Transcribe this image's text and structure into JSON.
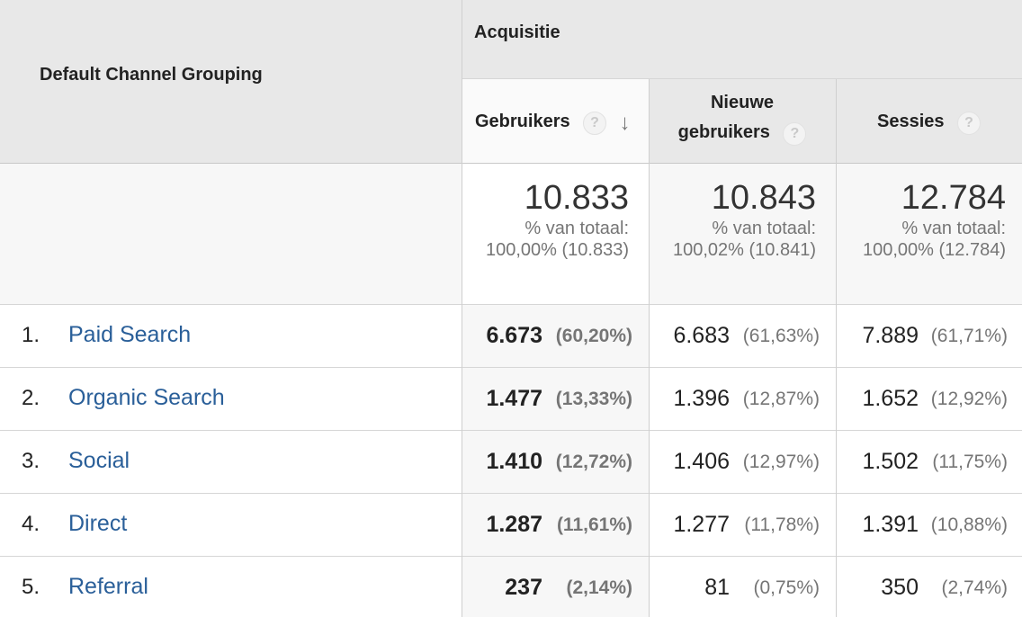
{
  "headers": {
    "dimension": "Default Channel Grouping",
    "group": "Acquisitie",
    "col1": "Gebruikers",
    "col2_line1": "Nieuwe",
    "col2_line2": "gebruikers",
    "col3": "Sessies",
    "help_glyph": "?",
    "sort_glyph": "↓"
  },
  "totals": {
    "col1": {
      "value": "10.833",
      "line1": "% van totaal:",
      "line2": "100,00% (10.833)"
    },
    "col2": {
      "value": "10.843",
      "line1": "% van totaal:",
      "line2": "100,02% (10.841)"
    },
    "col3": {
      "value": "12.784",
      "line1": "% van totaal:",
      "line2": "100,00% (12.784)"
    }
  },
  "rows": [
    {
      "num": "1.",
      "channel": "Paid Search",
      "c1": "6.673",
      "p1": "(60,20%)",
      "c2": "6.683",
      "p2": "(61,63%)",
      "c3": "7.889",
      "p3": "(61,71%)"
    },
    {
      "num": "2.",
      "channel": "Organic Search",
      "c1": "1.477",
      "p1": "(13,33%)",
      "c2": "1.396",
      "p2": "(12,87%)",
      "c3": "1.652",
      "p3": "(12,92%)"
    },
    {
      "num": "3.",
      "channel": "Social",
      "c1": "1.410",
      "p1": "(12,72%)",
      "c2": "1.406",
      "p2": "(12,97%)",
      "c3": "1.502",
      "p3": "(11,75%)"
    },
    {
      "num": "4.",
      "channel": "Direct",
      "c1": "1.287",
      "p1": "(11,61%)",
      "c2": "1.277",
      "p2": "(11,78%)",
      "c3": "1.391",
      "p3": "(10,88%)"
    },
    {
      "num": "5.",
      "channel": "Referral",
      "c1": "237",
      "p1": "(2,14%)",
      "c2": "81",
      "p2": "(0,75%)",
      "c3": "350",
      "p3": "(2,74%)"
    }
  ],
  "colors": {
    "link": "#2a5f99",
    "header_bg": "#e8e8e8",
    "muted": "#757575"
  }
}
